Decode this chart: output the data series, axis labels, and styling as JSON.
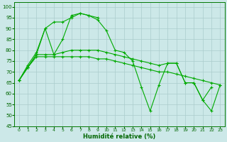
{
  "xlabel": "Humidité relative (%)",
  "background_color": "#cce8e8",
  "grid_color": "#aacccc",
  "line_color": "#00aa00",
  "xlim": [
    -0.5,
    23.5
  ],
  "ylim": [
    45,
    102
  ],
  "yticks": [
    45,
    50,
    55,
    60,
    65,
    70,
    75,
    80,
    85,
    90,
    95,
    100
  ],
  "xticks": [
    0,
    1,
    2,
    3,
    4,
    5,
    6,
    7,
    8,
    9,
    10,
    11,
    12,
    13,
    14,
    15,
    16,
    17,
    18,
    19,
    20,
    21,
    22,
    23
  ],
  "series": [
    [
      66,
      72,
      78,
      90,
      78,
      85,
      96,
      97,
      96,
      94,
      89,
      80,
      79,
      75,
      63,
      52,
      64,
      74,
      74,
      65,
      65,
      57,
      63,
      null
    ],
    [
      66,
      73,
      79,
      90,
      93,
      93,
      95,
      97,
      96,
      95,
      null,
      null,
      null,
      null,
      null,
      null,
      null,
      null,
      null,
      null,
      null,
      null,
      null,
      null
    ],
    [
      66,
      72,
      77,
      77,
      77,
      77,
      77,
      77,
      77,
      76,
      76,
      75,
      74,
      73,
      72,
      71,
      70,
      70,
      69,
      68,
      67,
      66,
      65,
      64
    ],
    [
      66,
      72,
      78,
      78,
      78,
      79,
      80,
      80,
      80,
      80,
      79,
      78,
      77,
      76,
      75,
      74,
      73,
      74,
      74,
      65,
      65,
      57,
      52,
      64
    ]
  ]
}
